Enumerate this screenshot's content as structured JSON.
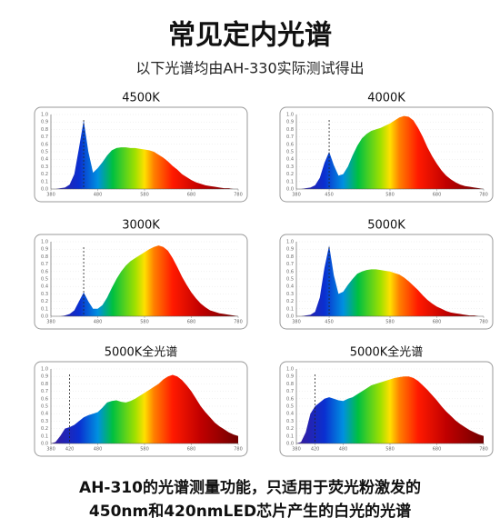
{
  "header": {
    "title": "常见定内光谱",
    "subtitle": "以下光谱均由AH-330实际测试得出"
  },
  "footer": [
    "AH-310的光谱测量功能，只适用于荧光粉激发的",
    "450nm和420nmLED芯片产生的白光的光谱"
  ],
  "chart_data": [
    {
      "type": "area",
      "title": "4500K",
      "marker_x": 450,
      "x": [
        380,
        390,
        400,
        410,
        420,
        430,
        440,
        450,
        460,
        470,
        480,
        490,
        500,
        510,
        520,
        530,
        540,
        550,
        560,
        570,
        580,
        590,
        600,
        610,
        620,
        630,
        640,
        650,
        660,
        670,
        680,
        690,
        700,
        710,
        720,
        730,
        740,
        750,
        760,
        770,
        780
      ],
      "values": [
        0,
        0,
        0.01,
        0.02,
        0.06,
        0.2,
        0.55,
        0.92,
        0.5,
        0.22,
        0.28,
        0.36,
        0.45,
        0.52,
        0.55,
        0.56,
        0.56,
        0.55,
        0.55,
        0.54,
        0.53,
        0.52,
        0.5,
        0.46,
        0.42,
        0.37,
        0.31,
        0.26,
        0.2,
        0.16,
        0.12,
        0.09,
        0.07,
        0.05,
        0.04,
        0.03,
        0.02,
        0.01,
        0.01,
        0,
        0
      ],
      "xlim": [
        380,
        780
      ],
      "xticks": [
        380,
        480,
        580,
        680,
        780
      ],
      "ylim": [
        0,
        1
      ],
      "yticks": [
        {
          "value": 0,
          "label": "0.0"
        },
        0.1,
        0.2,
        0.3,
        0.4,
        0.5,
        0.6,
        0.7,
        0.8,
        0.9,
        {
          "value": 1,
          "label": "1.0"
        }
      ]
    },
    {
      "type": "area",
      "title": "4000K",
      "marker_x": 450,
      "x": [
        380,
        390,
        400,
        410,
        420,
        430,
        440,
        450,
        460,
        470,
        480,
        490,
        500,
        510,
        520,
        530,
        540,
        550,
        560,
        570,
        580,
        590,
        600,
        610,
        620,
        630,
        640,
        650,
        660,
        670,
        680,
        690,
        700,
        710,
        720,
        730,
        740,
        750,
        760,
        770,
        780
      ],
      "values": [
        0,
        0,
        0.01,
        0.02,
        0.05,
        0.15,
        0.35,
        0.5,
        0.32,
        0.18,
        0.2,
        0.3,
        0.45,
        0.58,
        0.68,
        0.74,
        0.78,
        0.8,
        0.82,
        0.85,
        0.88,
        0.92,
        0.96,
        0.98,
        0.97,
        0.92,
        0.82,
        0.7,
        0.56,
        0.44,
        0.34,
        0.25,
        0.18,
        0.13,
        0.09,
        0.06,
        0.04,
        0.03,
        0.02,
        0.01,
        0
      ],
      "xlim": [
        380,
        780
      ],
      "xticks": [
        380,
        450,
        580,
        680,
        780
      ],
      "ylim": [
        0,
        1
      ],
      "yticks": [
        {
          "value": 0,
          "label": "0.0"
        },
        0.1,
        0.2,
        0.3,
        0.4,
        0.5,
        0.6,
        0.7,
        0.8,
        0.9,
        {
          "value": 1,
          "label": "1.0"
        }
      ]
    },
    {
      "type": "area",
      "title": "3000K",
      "marker_x": 450,
      "x": [
        380,
        390,
        400,
        410,
        420,
        430,
        440,
        450,
        460,
        470,
        480,
        490,
        500,
        510,
        520,
        530,
        540,
        550,
        560,
        570,
        580,
        590,
        600,
        610,
        620,
        630,
        640,
        650,
        660,
        670,
        680,
        690,
        700,
        710,
        720,
        730,
        740,
        750,
        760,
        770,
        780
      ],
      "values": [
        0,
        0,
        0,
        0.01,
        0.03,
        0.08,
        0.2,
        0.32,
        0.2,
        0.1,
        0.1,
        0.15,
        0.25,
        0.38,
        0.5,
        0.6,
        0.68,
        0.74,
        0.78,
        0.82,
        0.86,
        0.9,
        0.93,
        0.95,
        0.93,
        0.88,
        0.78,
        0.66,
        0.53,
        0.42,
        0.32,
        0.24,
        0.17,
        0.12,
        0.08,
        0.06,
        0.04,
        0.03,
        0.02,
        0.01,
        0
      ],
      "xlim": [
        380,
        780
      ],
      "xticks": [
        380,
        480,
        580,
        680,
        780
      ],
      "ylim": [
        0,
        1
      ],
      "yticks": [
        {
          "value": 0,
          "label": "0.0"
        },
        0.1,
        0.2,
        0.3,
        0.4,
        0.5,
        0.6,
        0.7,
        0.8,
        0.9,
        {
          "value": 1,
          "label": "1.0"
        }
      ]
    },
    {
      "type": "area",
      "title": "5000K",
      "marker_x": 450,
      "x": [
        380,
        390,
        400,
        410,
        420,
        430,
        440,
        450,
        460,
        470,
        480,
        490,
        500,
        510,
        520,
        530,
        540,
        550,
        560,
        570,
        580,
        590,
        600,
        610,
        620,
        630,
        640,
        650,
        660,
        670,
        680,
        690,
        700,
        710,
        720,
        730,
        740,
        750,
        760,
        770,
        780
      ],
      "values": [
        0,
        0,
        0.01,
        0.02,
        0.06,
        0.25,
        0.65,
        0.95,
        0.55,
        0.3,
        0.33,
        0.42,
        0.5,
        0.57,
        0.6,
        0.62,
        0.63,
        0.63,
        0.62,
        0.61,
        0.6,
        0.58,
        0.56,
        0.52,
        0.47,
        0.41,
        0.35,
        0.28,
        0.22,
        0.17,
        0.13,
        0.1,
        0.07,
        0.05,
        0.04,
        0.03,
        0.02,
        0.01,
        0.01,
        0,
        0
      ],
      "xlim": [
        380,
        780
      ],
      "xticks": [
        380,
        450,
        580,
        680,
        780
      ],
      "ylim": [
        0,
        1
      ],
      "yticks": [
        {
          "value": 0,
          "label": "0.0"
        },
        0.1,
        0.2,
        0.3,
        0.4,
        0.5,
        0.6,
        0.7,
        0.8,
        0.9,
        {
          "value": 1,
          "label": "1.0"
        }
      ]
    },
    {
      "type": "area",
      "title": "5000K全光谱",
      "marker_x": 420,
      "x": [
        380,
        390,
        400,
        410,
        420,
        430,
        440,
        450,
        460,
        470,
        480,
        490,
        500,
        510,
        520,
        530,
        540,
        550,
        560,
        570,
        580,
        590,
        600,
        610,
        620,
        630,
        640,
        650,
        660,
        670,
        680,
        690,
        700,
        710,
        720,
        730,
        740,
        750,
        760,
        770,
        780
      ],
      "values": [
        0,
        0.02,
        0.1,
        0.2,
        0.22,
        0.25,
        0.3,
        0.35,
        0.38,
        0.4,
        0.42,
        0.48,
        0.55,
        0.57,
        0.58,
        0.56,
        0.55,
        0.57,
        0.6,
        0.64,
        0.68,
        0.72,
        0.76,
        0.8,
        0.86,
        0.9,
        0.92,
        0.9,
        0.85,
        0.78,
        0.7,
        0.6,
        0.5,
        0.42,
        0.35,
        0.28,
        0.23,
        0.19,
        0.15,
        0.12,
        0.1
      ],
      "xlim": [
        380,
        780
      ],
      "xticks": [
        380,
        420,
        480,
        580,
        680,
        780
      ],
      "ylim": [
        0,
        1
      ],
      "yticks": [
        {
          "value": 0,
          "label": "0.0"
        },
        0.1,
        0.2,
        0.3,
        0.4,
        0.5,
        0.6,
        0.7,
        0.8,
        0.9,
        {
          "value": 1,
          "label": "1.0"
        }
      ]
    },
    {
      "type": "area",
      "title": "5000K全光谱",
      "marker_x": 420,
      "x": [
        380,
        390,
        400,
        410,
        420,
        430,
        440,
        450,
        460,
        470,
        480,
        490,
        500,
        510,
        520,
        530,
        540,
        550,
        560,
        570,
        580,
        590,
        600,
        610,
        620,
        630,
        640,
        650,
        660,
        670,
        680,
        690,
        700,
        710,
        720,
        730,
        740,
        750,
        760,
        770,
        780
      ],
      "values": [
        0,
        0.02,
        0.15,
        0.4,
        0.5,
        0.55,
        0.6,
        0.62,
        0.6,
        0.58,
        0.57,
        0.6,
        0.62,
        0.66,
        0.7,
        0.74,
        0.78,
        0.8,
        0.82,
        0.84,
        0.86,
        0.88,
        0.89,
        0.9,
        0.9,
        0.88,
        0.84,
        0.78,
        0.72,
        0.65,
        0.58,
        0.5,
        0.43,
        0.37,
        0.31,
        0.26,
        0.22,
        0.18,
        0.15,
        0.12,
        0.1
      ],
      "xlim": [
        380,
        780
      ],
      "xticks": [
        380,
        420,
        480,
        580,
        680,
        780
      ],
      "ylim": [
        0,
        1
      ],
      "yticks": [
        {
          "value": 0,
          "label": "0.0"
        },
        0.1,
        0.2,
        0.3,
        0.4,
        0.5,
        0.6,
        0.7,
        0.8,
        0.9,
        {
          "value": 1,
          "label": "1.0"
        }
      ]
    }
  ]
}
